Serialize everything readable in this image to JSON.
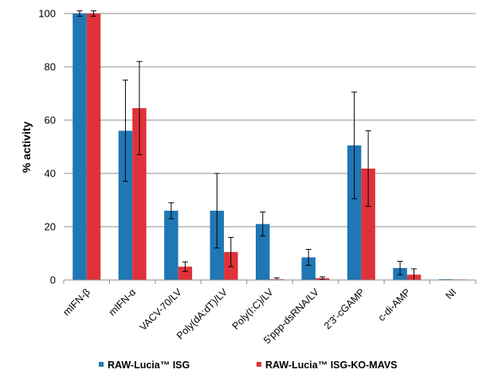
{
  "chart_data": {
    "type": "bar",
    "title": "",
    "xlabel": "",
    "ylabel": "% activity",
    "ylim": [
      0,
      100
    ],
    "yticks": [
      0,
      20,
      40,
      60,
      80,
      100
    ],
    "grid": true,
    "legend_position": "bottom",
    "categories": [
      "mIFN-β",
      "mIFN-α",
      "VACV-70/LV",
      "Poly(dA:dT)/LV",
      "Poly(I:C)/LV",
      "5'ppp-dsRNA/LV",
      "2'3'-cGAMP",
      "c-di-AMP",
      "NI"
    ],
    "series": [
      {
        "name": "RAW-Lucia™ ISG",
        "color": "#1f77b4",
        "values": [
          100,
          56,
          26,
          26,
          21,
          8.5,
          50.5,
          4.5,
          0.3
        ],
        "errors": [
          1,
          19,
          3,
          14,
          4.5,
          3,
          20,
          2.5,
          0
        ]
      },
      {
        "name": "RAW-Lucia™ ISG-KO-MAVS",
        "color": "#e0313a",
        "values": [
          100,
          64.5,
          5,
          10.5,
          0.3,
          0.7,
          41.8,
          2,
          0.2
        ],
        "errors": [
          1,
          17.5,
          1.8,
          5.5,
          0.5,
          0.5,
          14.2,
          2.2,
          0
        ]
      }
    ]
  }
}
